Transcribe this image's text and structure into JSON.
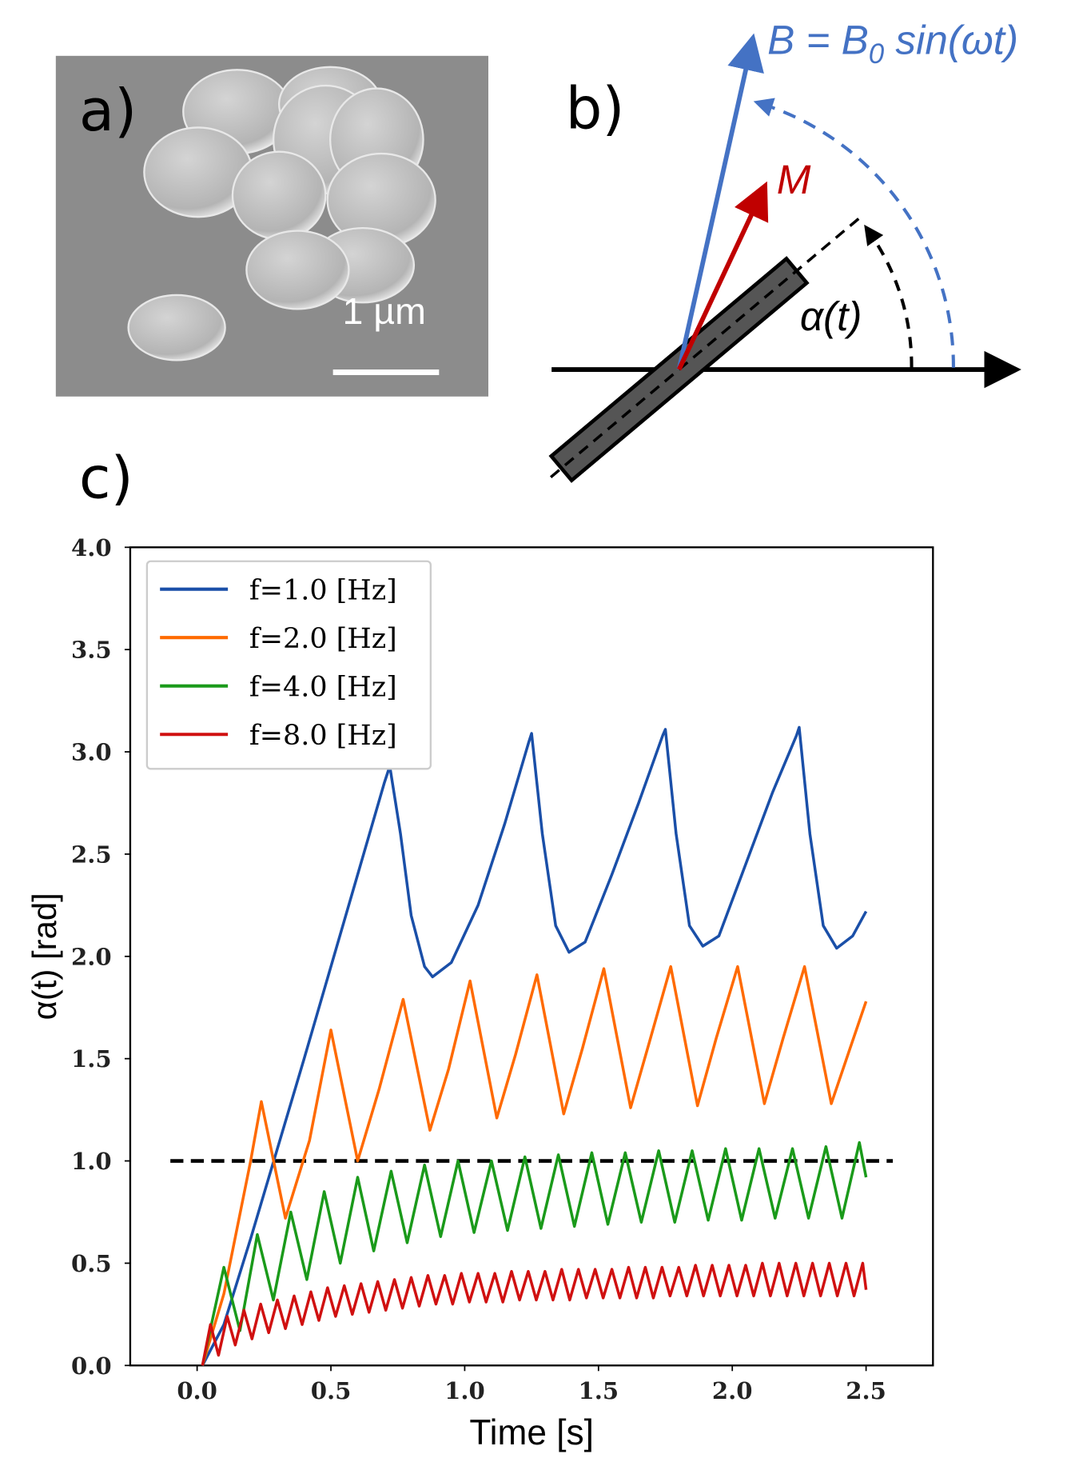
{
  "panels": {
    "a": "a)",
    "b": "b)",
    "c": "c)"
  },
  "sem_image": {
    "scale_label": "1 µm"
  },
  "diagram": {
    "field_label": {
      "main": "B = B",
      "sub": "0",
      "rest": " sin(ωt)"
    },
    "moment_label": "M",
    "angle_label": "α(t)"
  },
  "chart_data": {
    "type": "line",
    "xlabel": "Time [s]",
    "ylabel": "α(t) [rad]",
    "xlim": [
      -0.25,
      2.75
    ],
    "ylim": [
      0,
      4
    ],
    "xticks": [
      {
        "value": 0,
        "label": "0.0"
      },
      0.5,
      {
        "value": 1,
        "label": "1.0"
      },
      1.5,
      {
        "value": 2,
        "label": "2.0"
      },
      2.5
    ],
    "yticks": [
      {
        "value": 0,
        "label": "0.0"
      },
      0.5,
      {
        "value": 1,
        "label": "1.0"
      },
      1.5,
      {
        "value": 2,
        "label": "2.0"
      },
      2.5,
      {
        "value": 3,
        "label": "3.0"
      },
      3.5,
      {
        "value": 4,
        "label": "4.0"
      }
    ],
    "legend": "upper left",
    "reference_line": {
      "y": 1,
      "x_start": -0.1,
      "x_end": 2.6,
      "color": "#000000"
    },
    "series": [
      {
        "name": "f=1.0 [Hz]",
        "color": "#1a4fa8",
        "x": [
          0.02,
          0.1,
          0.2,
          0.4,
          0.6,
          0.7,
          0.72,
          0.76,
          0.8,
          0.85,
          0.88,
          0.95,
          1.05,
          1.15,
          1.24,
          1.25,
          1.29,
          1.34,
          1.39,
          1.45,
          1.55,
          1.65,
          1.74,
          1.75,
          1.79,
          1.84,
          1.89,
          1.95,
          2.05,
          2.15,
          2.24,
          2.25,
          2.29,
          2.34,
          2.39,
          2.45,
          2.5
        ],
        "values": [
          0,
          0.2,
          0.62,
          1.5,
          2.4,
          2.85,
          2.93,
          2.6,
          2.2,
          1.95,
          1.9,
          1.97,
          2.25,
          2.65,
          3.05,
          3.09,
          2.6,
          2.15,
          2.02,
          2.07,
          2.4,
          2.75,
          3.08,
          3.11,
          2.6,
          2.15,
          2.05,
          2.1,
          2.45,
          2.8,
          3.08,
          3.12,
          2.6,
          2.15,
          2.04,
          2.1,
          2.22
        ]
      },
      {
        "name": "f=2.0 [Hz]",
        "color": "#ff6a00",
        "x": [
          0.02,
          0.1,
          0.2,
          0.24,
          0.33,
          0.42,
          0.5,
          0.6,
          0.68,
          0.77,
          0.87,
          0.94,
          1.02,
          1.12,
          1.19,
          1.27,
          1.37,
          1.44,
          1.52,
          1.62,
          1.69,
          1.77,
          1.87,
          1.94,
          2.02,
          2.12,
          2.19,
          2.27,
          2.37,
          2.44,
          2.5
        ],
        "values": [
          0,
          0.35,
          1.0,
          1.29,
          0.72,
          1.1,
          1.64,
          1.0,
          1.35,
          1.79,
          1.15,
          1.45,
          1.88,
          1.21,
          1.52,
          1.91,
          1.23,
          1.55,
          1.94,
          1.26,
          1.58,
          1.95,
          1.27,
          1.6,
          1.95,
          1.28,
          1.6,
          1.95,
          1.28,
          1.55,
          1.78
        ]
      },
      {
        "name": "f=4.0 [Hz]",
        "color": "#1a9a1a",
        "x": [
          0.02,
          0.1,
          0.16,
          0.225,
          0.285,
          0.35,
          0.41,
          0.475,
          0.535,
          0.6,
          0.66,
          0.725,
          0.785,
          0.85,
          0.91,
          0.975,
          1.035,
          1.1,
          1.16,
          1.225,
          1.285,
          1.35,
          1.41,
          1.475,
          1.535,
          1.6,
          1.66,
          1.725,
          1.785,
          1.85,
          1.91,
          1.975,
          2.035,
          2.1,
          2.16,
          2.225,
          2.285,
          2.35,
          2.41,
          2.475,
          2.5
        ],
        "values": [
          0,
          0.48,
          0.17,
          0.64,
          0.32,
          0.75,
          0.42,
          0.85,
          0.5,
          0.92,
          0.56,
          0.95,
          0.6,
          0.98,
          0.63,
          1.0,
          0.65,
          1.0,
          0.66,
          1.02,
          0.67,
          1.03,
          0.68,
          1.04,
          0.69,
          1.04,
          0.7,
          1.05,
          0.7,
          1.05,
          0.71,
          1.06,
          0.71,
          1.06,
          0.72,
          1.06,
          0.72,
          1.07,
          0.72,
          1.09,
          0.92
        ]
      },
      {
        "name": "f=8.0 [Hz]",
        "color": "#d01010",
        "x": [
          0.02,
          0.05,
          0.08,
          0.1125,
          0.1425,
          0.175,
          0.205,
          0.2375,
          0.2675,
          0.3,
          0.33,
          0.3625,
          0.3925,
          0.425,
          0.455,
          0.4875,
          0.5175,
          0.55,
          0.58,
          0.6125,
          0.6425,
          0.675,
          0.705,
          0.7375,
          0.7675,
          0.8,
          0.83,
          0.8625,
          0.8925,
          0.925,
          0.955,
          0.9875,
          1.0175,
          1.05,
          1.08,
          1.1125,
          1.1425,
          1.175,
          1.205,
          1.2375,
          1.2675,
          1.3,
          1.33,
          1.3625,
          1.3925,
          1.425,
          1.455,
          1.4875,
          1.5175,
          1.55,
          1.58,
          1.6125,
          1.6425,
          1.675,
          1.705,
          1.7375,
          1.7675,
          1.8,
          1.83,
          1.8625,
          1.8925,
          1.925,
          1.955,
          1.9875,
          2.0175,
          2.05,
          2.08,
          2.1125,
          2.1425,
          2.175,
          2.205,
          2.2375,
          2.2675,
          2.3,
          2.33,
          2.3625,
          2.3925,
          2.425,
          2.455,
          2.4875,
          2.5
        ],
        "values": [
          0,
          0.2,
          0.05,
          0.24,
          0.1,
          0.27,
          0.13,
          0.3,
          0.16,
          0.32,
          0.18,
          0.34,
          0.2,
          0.36,
          0.22,
          0.38,
          0.24,
          0.39,
          0.25,
          0.4,
          0.26,
          0.41,
          0.27,
          0.42,
          0.28,
          0.43,
          0.29,
          0.44,
          0.3,
          0.44,
          0.3,
          0.45,
          0.31,
          0.45,
          0.31,
          0.45,
          0.31,
          0.46,
          0.32,
          0.46,
          0.32,
          0.46,
          0.32,
          0.47,
          0.32,
          0.47,
          0.33,
          0.47,
          0.33,
          0.47,
          0.33,
          0.48,
          0.33,
          0.48,
          0.33,
          0.48,
          0.34,
          0.48,
          0.34,
          0.49,
          0.34,
          0.49,
          0.34,
          0.49,
          0.34,
          0.49,
          0.34,
          0.5,
          0.34,
          0.5,
          0.34,
          0.5,
          0.34,
          0.5,
          0.34,
          0.5,
          0.34,
          0.5,
          0.34,
          0.5,
          0.37
        ]
      }
    ]
  }
}
